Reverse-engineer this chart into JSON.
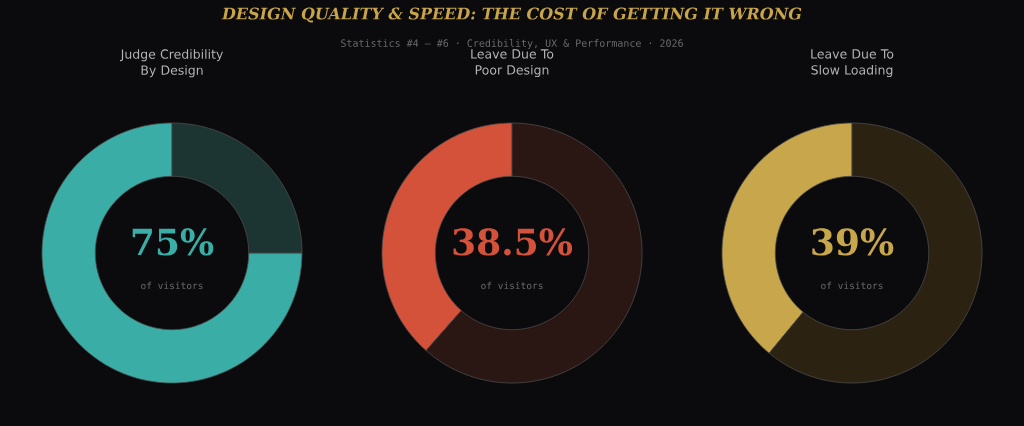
{
  "chart_data": [
    {
      "type": "other",
      "title": "DESIGN QUALITY & SPEED: THE COST OF GETTING IT WRONG",
      "subtitle": "Statistics #4 – #6  ·  Credibility, UX & Performance  ·  2026"
    },
    {
      "type": "donut",
      "title": "Judge Credibility By Design",
      "categories": [
        null,
        null
      ],
      "values": [
        75,
        25
      ],
      "colors": [
        "#3aaea6",
        "#1c3432"
      ],
      "value_labels": [
        "75%",
        null
      ],
      "annotations": [
        "of visitors"
      ]
    },
    {
      "type": "donut",
      "title": "Leave Due To Poor Design",
      "categories": [
        null,
        null
      ],
      "values": [
        38.5,
        61.5
      ],
      "colors": [
        "#d4513a",
        "#2a1612"
      ],
      "value_labels": [
        "38.5%",
        null
      ],
      "annotations": [
        "of visitors"
      ]
    },
    {
      "type": "donut",
      "title": "Leave Due To Slow Loading",
      "categories": [
        null,
        null
      ],
      "values": [
        39,
        61
      ],
      "colors": [
        "#c8a64b",
        "#2b2212"
      ],
      "value_labels": [
        "39%",
        null
      ],
      "annotations": [
        "of visitors"
      ]
    }
  ]
}
